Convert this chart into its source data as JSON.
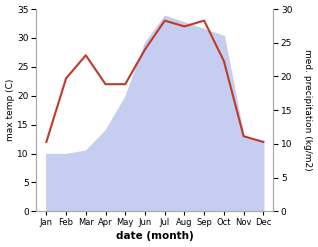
{
  "months": [
    "Jan",
    "Feb",
    "Mar",
    "Apr",
    "May",
    "Jun",
    "Jul",
    "Aug",
    "Sep",
    "Oct",
    "Nov",
    "Dec"
  ],
  "temperature": [
    12,
    23,
    27,
    22,
    22,
    28,
    33,
    32,
    33,
    26,
    13,
    12
  ],
  "precipitation": [
    8.5,
    8.5,
    9,
    12,
    17,
    25,
    29,
    28,
    27,
    26,
    11,
    10.5
  ],
  "temp_color": "#c0392b",
  "precip_fill_color": "#c5cef0",
  "temp_ylim": [
    0,
    35
  ],
  "precip_ylim": [
    0,
    30
  ],
  "temp_yticks": [
    0,
    5,
    10,
    15,
    20,
    25,
    30,
    35
  ],
  "precip_yticks": [
    0,
    5,
    10,
    15,
    20,
    25,
    30
  ],
  "xlabel": "date (month)",
  "ylabel_left": "max temp (C)",
  "ylabel_right": "med. precipitation (kg/m2)",
  "fig_width": 3.18,
  "fig_height": 2.47,
  "dpi": 100
}
